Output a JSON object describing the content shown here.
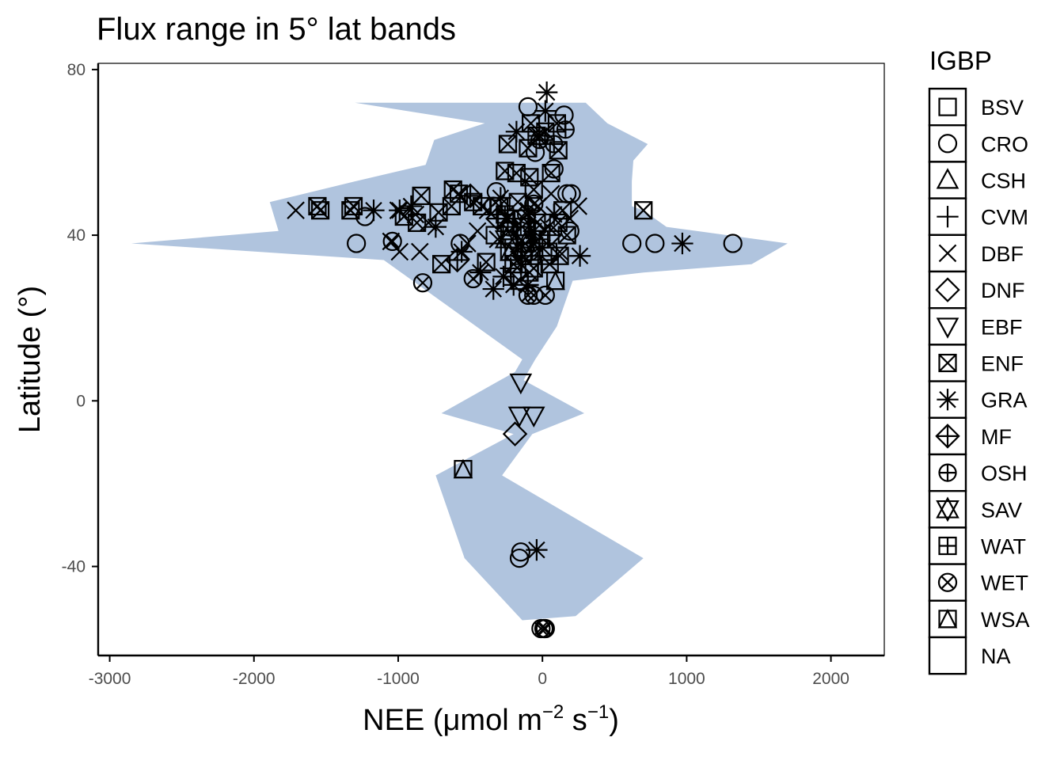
{
  "chart_data": {
    "type": "scatter",
    "title": "Flux range in 5° lat bands",
    "xlabel": {
      "prefix": "NEE (",
      "mu": "μ",
      "unit1": "mol m",
      "sup1": "−2",
      "unit2": " s",
      "sup2": "−1",
      "suffix": ")"
    },
    "ylabel": "Latitude (°)",
    "xlim": [
      -3080,
      2370
    ],
    "ylim": [
      -61.5,
      81.5
    ],
    "x_ticks": [
      -3000,
      -2000,
      -1000,
      0,
      1000,
      2000
    ],
    "x_tick_labels": [
      "-3000",
      "-2000",
      "-1000",
      "0",
      "1000",
      "2000"
    ],
    "y_ticks": [
      80,
      40,
      0,
      -40
    ],
    "y_tick_labels": [
      "80",
      "40",
      "0",
      "-40"
    ],
    "grid": false,
    "legend_position": "right",
    "ribbon_color": "#b0c4de",
    "legend": {
      "title": "IGBP",
      "items": [
        "BSV",
        "CRO",
        "CSH",
        "CVM",
        "DBF",
        "DNF",
        "EBF",
        "ENF",
        "GRA",
        "MF",
        "OSH",
        "SAV",
        "WAT",
        "WET",
        "WSA",
        "NA"
      ]
    },
    "ribbon": [
      [
        -1300,
        72
      ],
      [
        300,
        72
      ],
      [
        450,
        67
      ],
      [
        730,
        62
      ],
      [
        630,
        58
      ],
      [
        620,
        53
      ],
      [
        620,
        47
      ],
      [
        700,
        46
      ],
      [
        860,
        42
      ],
      [
        1700,
        38
      ],
      [
        1450,
        33
      ],
      [
        700,
        31
      ],
      [
        210,
        29
      ],
      [
        100,
        18
      ],
      [
        -50,
        10
      ],
      [
        -100,
        7
      ],
      [
        -130,
        5
      ],
      [
        290,
        -3
      ],
      [
        -70,
        -8
      ],
      [
        -280,
        -18
      ],
      [
        700,
        -38
      ],
      [
        230,
        -52
      ],
      [
        -140,
        -53
      ],
      [
        -540,
        -38
      ],
      [
        -740,
        -18
      ],
      [
        -200,
        -8
      ],
      [
        -700,
        -3
      ],
      [
        -190,
        7
      ],
      [
        -140,
        10
      ],
      [
        -900,
        29
      ],
      [
        -1100,
        34
      ],
      [
        -2850,
        38
      ],
      [
        -1830,
        41
      ],
      [
        -1890,
        48
      ],
      [
        -1300,
        53
      ],
      [
        -810,
        57
      ],
      [
        -750,
        63
      ],
      [
        -400,
        67
      ]
    ],
    "points": [
      {
        "igbp": "CRO",
        "x": -1290,
        "y": 38
      },
      {
        "igbp": "CRO",
        "x": -1230,
        "y": 44.5
      },
      {
        "igbp": "CRO",
        "x": -570,
        "y": 38
      },
      {
        "igbp": "CRO",
        "x": -340,
        "y": 47
      },
      {
        "igbp": "CRO",
        "x": -230,
        "y": 42
      },
      {
        "igbp": "CRO",
        "x": -130,
        "y": 40
      },
      {
        "igbp": "CRO",
        "x": -90,
        "y": 36
      },
      {
        "igbp": "CRO",
        "x": 620,
        "y": 38
      },
      {
        "igbp": "CRO",
        "x": 780,
        "y": 38
      },
      {
        "igbp": "CRO",
        "x": 1320,
        "y": 38
      },
      {
        "igbp": "CRO",
        "x": 170,
        "y": 50
      },
      {
        "igbp": "CRO",
        "x": 200,
        "y": 50
      },
      {
        "igbp": "CRO",
        "x": 150,
        "y": 69
      },
      {
        "igbp": "CRO",
        "x": -100,
        "y": 71
      },
      {
        "igbp": "CRO",
        "x": 80,
        "y": 56
      },
      {
        "igbp": "CRO",
        "x": -150,
        "y": -36.5
      },
      {
        "igbp": "CRO",
        "x": -160,
        "y": -38
      },
      {
        "igbp": "CRO",
        "x": -320,
        "y": 50.5
      },
      {
        "igbp": "CRO",
        "x": -50,
        "y": 60
      },
      {
        "igbp": "CRO",
        "x": 190,
        "y": 41
      },
      {
        "igbp": "DBF",
        "x": -1710,
        "y": 46
      },
      {
        "igbp": "DBF",
        "x": -1050,
        "y": 38.5
      },
      {
        "igbp": "DBF",
        "x": -990,
        "y": 36
      },
      {
        "igbp": "DBF",
        "x": -850,
        "y": 36
      },
      {
        "igbp": "DBF",
        "x": -880,
        "y": 45
      },
      {
        "igbp": "DBF",
        "x": -790,
        "y": 43
      },
      {
        "igbp": "DBF",
        "x": -520,
        "y": 38
      },
      {
        "igbp": "DBF",
        "x": -450,
        "y": 41
      },
      {
        "igbp": "DBF",
        "x": -310,
        "y": 39
      },
      {
        "igbp": "DBF",
        "x": -200,
        "y": 36
      },
      {
        "igbp": "DBF",
        "x": -130,
        "y": 44
      },
      {
        "igbp": "DBF",
        "x": -60,
        "y": 38
      },
      {
        "igbp": "DBF",
        "x": 40,
        "y": 42
      },
      {
        "igbp": "DBF",
        "x": 120,
        "y": 36
      },
      {
        "igbp": "DBF",
        "x": 250,
        "y": 47
      },
      {
        "igbp": "DBF",
        "x": 190,
        "y": 44
      },
      {
        "igbp": "DBF",
        "x": -30,
        "y": 47
      },
      {
        "igbp": "DBF",
        "x": -1000,
        "y": 46
      },
      {
        "igbp": "DBF",
        "x": -380,
        "y": 46
      },
      {
        "igbp": "DBF",
        "x": 60,
        "y": 50
      },
      {
        "igbp": "ENF",
        "x": -1560,
        "y": 47
      },
      {
        "igbp": "ENF",
        "x": -1540,
        "y": 46
      },
      {
        "igbp": "ENF",
        "x": -1310,
        "y": 47
      },
      {
        "igbp": "ENF",
        "x": -1330,
        "y": 46
      },
      {
        "igbp": "ENF",
        "x": -960,
        "y": 44.5
      },
      {
        "igbp": "ENF",
        "x": -840,
        "y": 49.5
      },
      {
        "igbp": "ENF",
        "x": -870,
        "y": 43
      },
      {
        "igbp": "ENF",
        "x": -720,
        "y": 45.5
      },
      {
        "igbp": "ENF",
        "x": -630,
        "y": 47
      },
      {
        "igbp": "ENF",
        "x": -620,
        "y": 51
      },
      {
        "igbp": "ENF",
        "x": -580,
        "y": 50
      },
      {
        "igbp": "ENF",
        "x": -480,
        "y": 48
      },
      {
        "igbp": "ENF",
        "x": -420,
        "y": 47
      },
      {
        "igbp": "ENF",
        "x": -700,
        "y": 33
      },
      {
        "igbp": "ENF",
        "x": -390,
        "y": 33.5
      },
      {
        "igbp": "ENF",
        "x": -240,
        "y": 62
      },
      {
        "igbp": "ENF",
        "x": -260,
        "y": 55.5
      },
      {
        "igbp": "ENF",
        "x": -180,
        "y": 55
      },
      {
        "igbp": "ENF",
        "x": -90,
        "y": 54
      },
      {
        "igbp": "ENF",
        "x": -100,
        "y": 61
      },
      {
        "igbp": "ENF",
        "x": -80,
        "y": 67
      },
      {
        "igbp": "ENF",
        "x": -40,
        "y": 64
      },
      {
        "igbp": "ENF",
        "x": 20,
        "y": 65
      },
      {
        "igbp": "ENF",
        "x": 100,
        "y": 67
      },
      {
        "igbp": "ENF",
        "x": 110,
        "y": 60.5
      },
      {
        "igbp": "ENF",
        "x": 60,
        "y": 55
      },
      {
        "igbp": "ENF",
        "x": -60,
        "y": 51
      },
      {
        "igbp": "ENF",
        "x": -170,
        "y": 48
      },
      {
        "igbp": "ENF",
        "x": -300,
        "y": 47
      },
      {
        "igbp": "ENF",
        "x": -250,
        "y": 44
      },
      {
        "igbp": "ENF",
        "x": -230,
        "y": 41
      },
      {
        "igbp": "ENF",
        "x": -140,
        "y": 42
      },
      {
        "igbp": "ENF",
        "x": -120,
        "y": 38
      },
      {
        "igbp": "ENF",
        "x": -40,
        "y": 43
      },
      {
        "igbp": "ENF",
        "x": 140,
        "y": 46
      },
      {
        "igbp": "ENF",
        "x": 110,
        "y": 43
      },
      {
        "igbp": "ENF",
        "x": 170,
        "y": 40
      },
      {
        "igbp": "ENF",
        "x": 120,
        "y": 35
      },
      {
        "igbp": "ENF",
        "x": 50,
        "y": 33
      },
      {
        "igbp": "ENF",
        "x": 700,
        "y": 46
      },
      {
        "igbp": "ENF",
        "x": -200,
        "y": 33
      },
      {
        "igbp": "ENF",
        "x": -60,
        "y": 32
      },
      {
        "igbp": "ENF",
        "x": -160,
        "y": 29
      },
      {
        "igbp": "ENF",
        "x": -90,
        "y": 31
      },
      {
        "igbp": "GRA",
        "x": -990,
        "y": 46
      },
      {
        "igbp": "GRA",
        "x": -1170,
        "y": 46
      },
      {
        "igbp": "GRA",
        "x": -910,
        "y": 47
      },
      {
        "igbp": "GRA",
        "x": -740,
        "y": 42
      },
      {
        "igbp": "GRA",
        "x": -560,
        "y": 36
      },
      {
        "igbp": "GRA",
        "x": -430,
        "y": 31
      },
      {
        "igbp": "GRA",
        "x": -340,
        "y": 27
      },
      {
        "igbp": "GRA",
        "x": -270,
        "y": 30
      },
      {
        "igbp": "GRA",
        "x": -200,
        "y": 28
      },
      {
        "igbp": "GRA",
        "x": -150,
        "y": 33
      },
      {
        "igbp": "GRA",
        "x": -100,
        "y": 46
      },
      {
        "igbp": "GRA",
        "x": -60,
        "y": 41
      },
      {
        "igbp": "GRA",
        "x": 0,
        "y": 37
      },
      {
        "igbp": "GRA",
        "x": 30,
        "y": 74.5
      },
      {
        "igbp": "GRA",
        "x": 20,
        "y": 70
      },
      {
        "igbp": "GRA",
        "x": -180,
        "y": 65
      },
      {
        "igbp": "GRA",
        "x": -20,
        "y": 64
      },
      {
        "igbp": "GRA",
        "x": 80,
        "y": 45
      },
      {
        "igbp": "GRA",
        "x": 260,
        "y": 35
      },
      {
        "igbp": "GRA",
        "x": 970,
        "y": 38
      },
      {
        "igbp": "GRA",
        "x": -40,
        "y": -36
      },
      {
        "igbp": "GRA",
        "x": -240,
        "y": 44
      },
      {
        "igbp": "GRA",
        "x": -290,
        "y": 49
      },
      {
        "igbp": "GRA",
        "x": -100,
        "y": 28
      },
      {
        "igbp": "EBF",
        "x": -150,
        "y": 4.5
      },
      {
        "igbp": "EBF",
        "x": -160,
        "y": -3.5
      },
      {
        "igbp": "EBF",
        "x": -60,
        "y": -3.5
      },
      {
        "igbp": "DNF",
        "x": -190,
        "y": -8
      },
      {
        "igbp": "WSA",
        "x": -550,
        "y": -16.5
      },
      {
        "igbp": "WSA",
        "x": 90,
        "y": 29
      },
      {
        "igbp": "WSA",
        "x": -230,
        "y": 36
      },
      {
        "igbp": "WET",
        "x": -830,
        "y": 28.5
      },
      {
        "igbp": "WET",
        "x": -1040,
        "y": 38.5
      },
      {
        "igbp": "WET",
        "x": -480,
        "y": 29.5
      },
      {
        "igbp": "WET",
        "x": -60,
        "y": 25.5
      },
      {
        "igbp": "WET",
        "x": -100,
        "y": 25.5
      },
      {
        "igbp": "WET",
        "x": 20,
        "y": 25.5
      },
      {
        "igbp": "WET",
        "x": -60,
        "y": 47.5
      },
      {
        "igbp": "WET",
        "x": -110,
        "y": 45
      },
      {
        "igbp": "WET",
        "x": 20,
        "y": -55
      },
      {
        "igbp": "WET",
        "x": -10,
        "y": -55
      },
      {
        "igbp": "WET",
        "x": 10,
        "y": -55
      },
      {
        "igbp": "WET",
        "x": -130,
        "y": 35
      },
      {
        "igbp": "MF",
        "x": -500,
        "y": 49.5
      },
      {
        "igbp": "MF",
        "x": -590,
        "y": 34
      },
      {
        "igbp": "MF",
        "x": -310,
        "y": 44
      },
      {
        "igbp": "MF",
        "x": -140,
        "y": 36
      },
      {
        "igbp": "MF",
        "x": -50,
        "y": 41
      },
      {
        "igbp": "MF",
        "x": 50,
        "y": 40
      },
      {
        "igbp": "OSH",
        "x": 160,
        "y": 65.5
      },
      {
        "igbp": "OSH",
        "x": -20,
        "y": 63
      },
      {
        "igbp": "OSH",
        "x": 80,
        "y": 62
      },
      {
        "igbp": "OSH",
        "x": -80,
        "y": 38
      },
      {
        "igbp": "CVM",
        "x": -180,
        "y": 40
      },
      {
        "igbp": "CVM",
        "x": -80,
        "y": 35
      },
      {
        "igbp": "CVM",
        "x": -220,
        "y": 32
      },
      {
        "igbp": "CVM",
        "x": -30,
        "y": 33
      },
      {
        "igbp": "SAV",
        "x": -250,
        "y": 39
      },
      {
        "igbp": "SAV",
        "x": -120,
        "y": 38
      },
      {
        "igbp": "WAT",
        "x": -260,
        "y": 45
      },
      {
        "igbp": "WAT",
        "x": -150,
        "y": 42
      },
      {
        "igbp": "WAT",
        "x": -20,
        "y": 39
      },
      {
        "igbp": "BSV",
        "x": -200,
        "y": 37
      },
      {
        "igbp": "BSV",
        "x": 40,
        "y": 36
      },
      {
        "igbp": "BSV",
        "x": -330,
        "y": 40
      }
    ]
  }
}
